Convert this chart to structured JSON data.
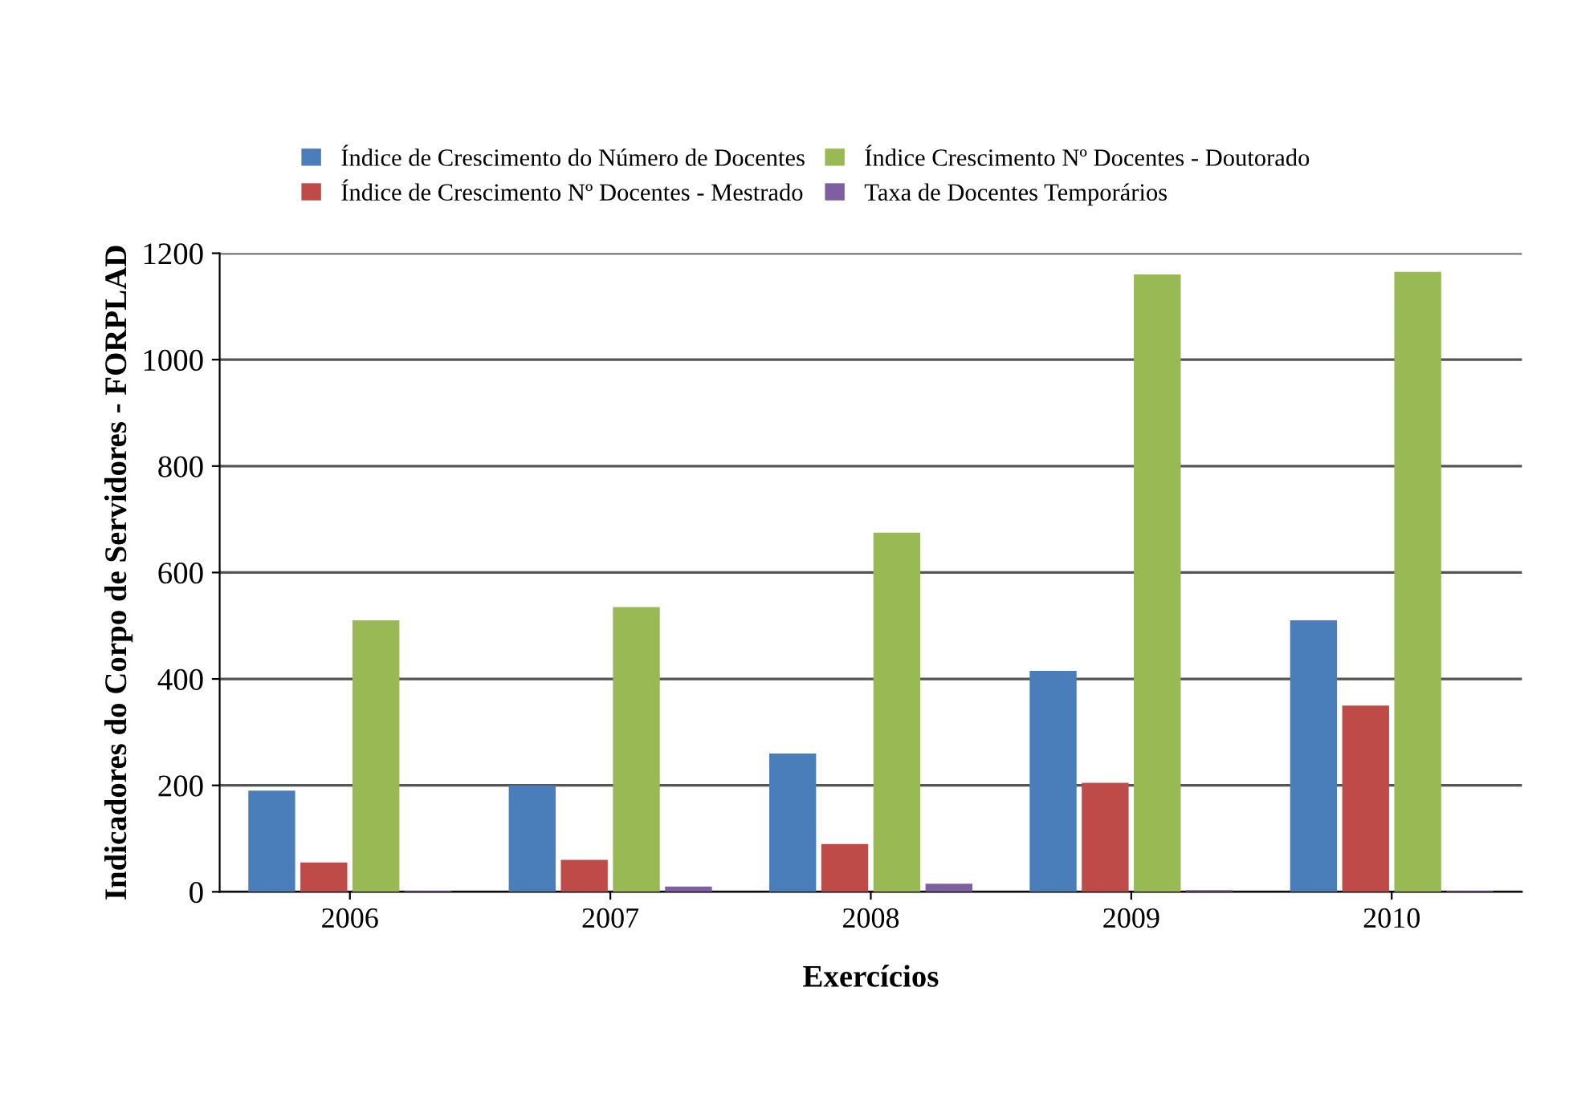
{
  "chart_data": {
    "type": "bar",
    "xlabel": "Exercícios",
    "ylabel": "Indicadores do Corpo de Servidores - FORPLAD",
    "categories": [
      "2006",
      "2007",
      "2008",
      "2009",
      "2010"
    ],
    "series": [
      {
        "name": "Índice de Crescimento do Número de Docentes",
        "color": "#4a7ebb",
        "values": [
          190,
          200,
          260,
          415,
          510
        ]
      },
      {
        "name": "Índice de Crescimento Nº Docentes - Mestrado",
        "color": "#be4b48",
        "values": [
          55,
          60,
          90,
          205,
          350
        ]
      },
      {
        "name": "Índice Crescimento Nº Docentes - Doutorado",
        "color": "#98b954",
        "values": [
          510,
          535,
          675,
          1160,
          1165
        ]
      },
      {
        "name": "Taxa de Docentes Temporários",
        "color": "#7d60a0",
        "values": [
          2,
          10,
          15,
          3,
          2
        ]
      }
    ],
    "ylim": [
      0,
      1200
    ],
    "yticks": [
      0,
      200,
      400,
      600,
      800,
      1000,
      1200
    ],
    "grid": "y",
    "legend": "top"
  }
}
